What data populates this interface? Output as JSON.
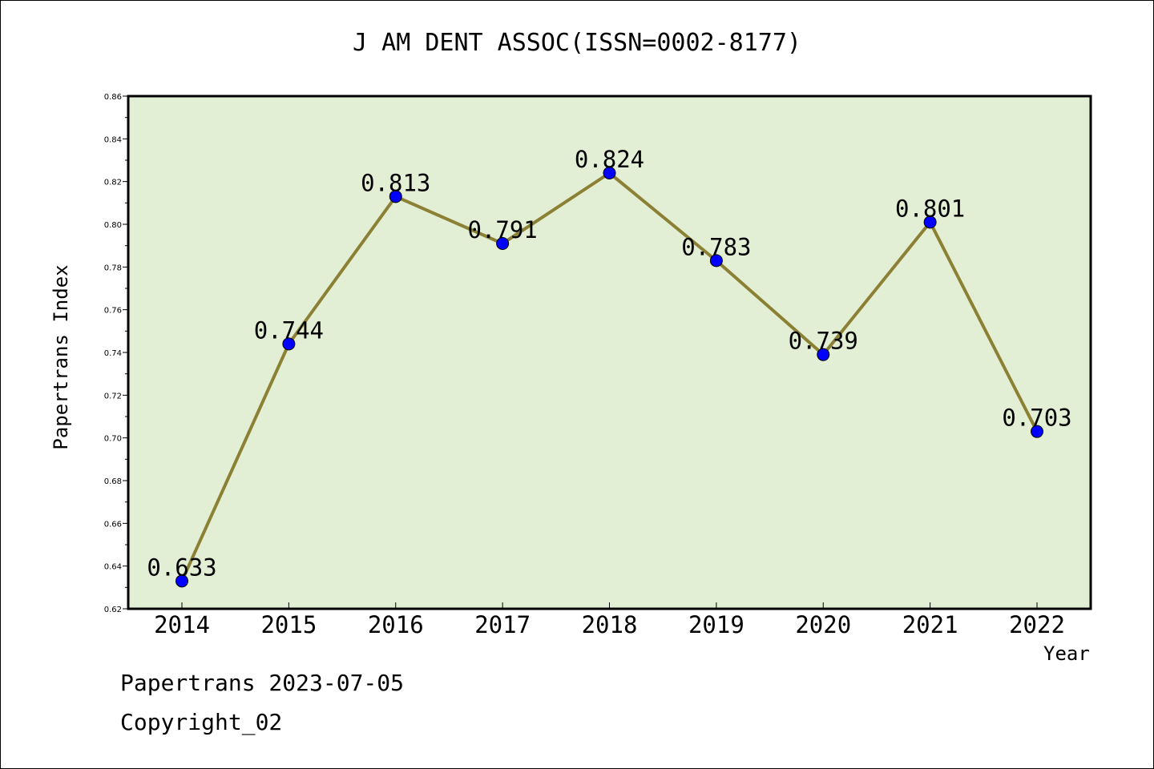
{
  "title": "J AM DENT ASSOC(ISSN=0002-8177)",
  "footer": {
    "line1": "Papertrans 2023-07-05",
    "line2": "Copyright_02"
  },
  "colors": {
    "plot_background": "#e2efd4",
    "line": "#8b8034",
    "marker": "#0000ff"
  },
  "chart_data": {
    "type": "line",
    "title": "J AM DENT ASSOC(ISSN=0002-8177)",
    "xlabel": "Year",
    "ylabel": "Papertrans Index",
    "categories": [
      "2014",
      "2015",
      "2016",
      "2017",
      "2018",
      "2019",
      "2020",
      "2021",
      "2022"
    ],
    "series": [
      {
        "values": [
          0.633,
          0.744,
          0.813,
          0.791,
          0.824,
          0.783,
          0.739,
          0.801,
          0.703
        ],
        "labels": [
          "0.633",
          "0.744",
          "0.813",
          "0.791",
          "0.824",
          "0.783",
          "0.739",
          "0.801",
          "0.703"
        ]
      }
    ],
    "ylim": [
      0.62,
      0.86
    ],
    "yticks": [
      "0.62",
      "0.64",
      "0.66",
      "0.68",
      "0.70",
      "0.72",
      "0.74",
      "0.76",
      "0.78",
      "0.80",
      "0.82",
      "0.84",
      "0.86"
    ],
    "grid": false,
    "legend": "none"
  }
}
